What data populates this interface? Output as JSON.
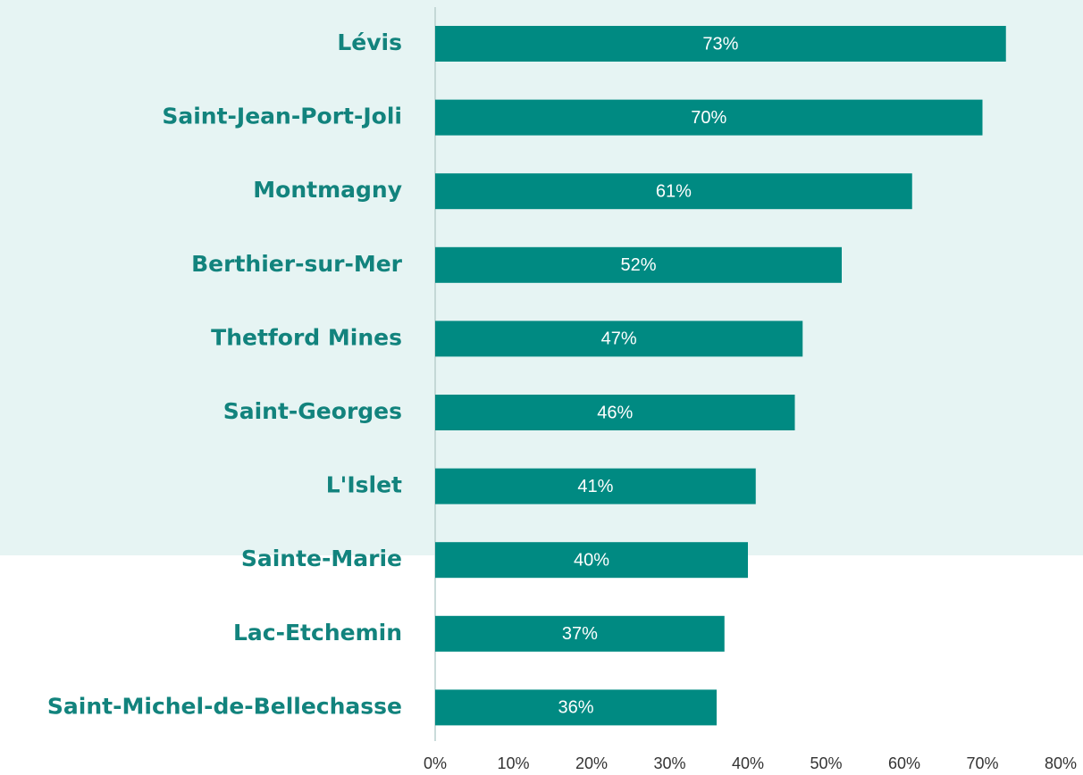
{
  "chart_data": {
    "type": "bar",
    "orientation": "horizontal",
    "categories": [
      "Lévis",
      "Saint-Jean-Port-Joli",
      "Montmagny",
      "Berthier-sur-Mer",
      "Thetford Mines",
      "Saint-Georges",
      "L'Islet",
      "Sainte-Marie",
      "Lac-Etchemin",
      "Saint-Michel-de-Bellechasse"
    ],
    "values": [
      73,
      70,
      61,
      52,
      47,
      46,
      41,
      40,
      37,
      36
    ],
    "value_labels": [
      "73%",
      "70%",
      "61%",
      "52%",
      "47%",
      "46%",
      "41%",
      "40%",
      "37%",
      "36%"
    ],
    "color": "#008a82",
    "xlim": [
      0,
      80
    ],
    "xticks": [
      {
        "value": 0,
        "label": "0%"
      },
      {
        "value": 10,
        "label": "10%"
      },
      {
        "value": 20,
        "label": "20%"
      },
      {
        "value": 30,
        "label": "30%"
      },
      {
        "value": 40,
        "label": "40%"
      },
      {
        "value": 50,
        "label": "50%"
      },
      {
        "value": 60,
        "label": "60%"
      },
      {
        "value": 70,
        "label": "70%"
      },
      {
        "value": 80,
        "label": "80%"
      }
    ],
    "grid": false
  }
}
